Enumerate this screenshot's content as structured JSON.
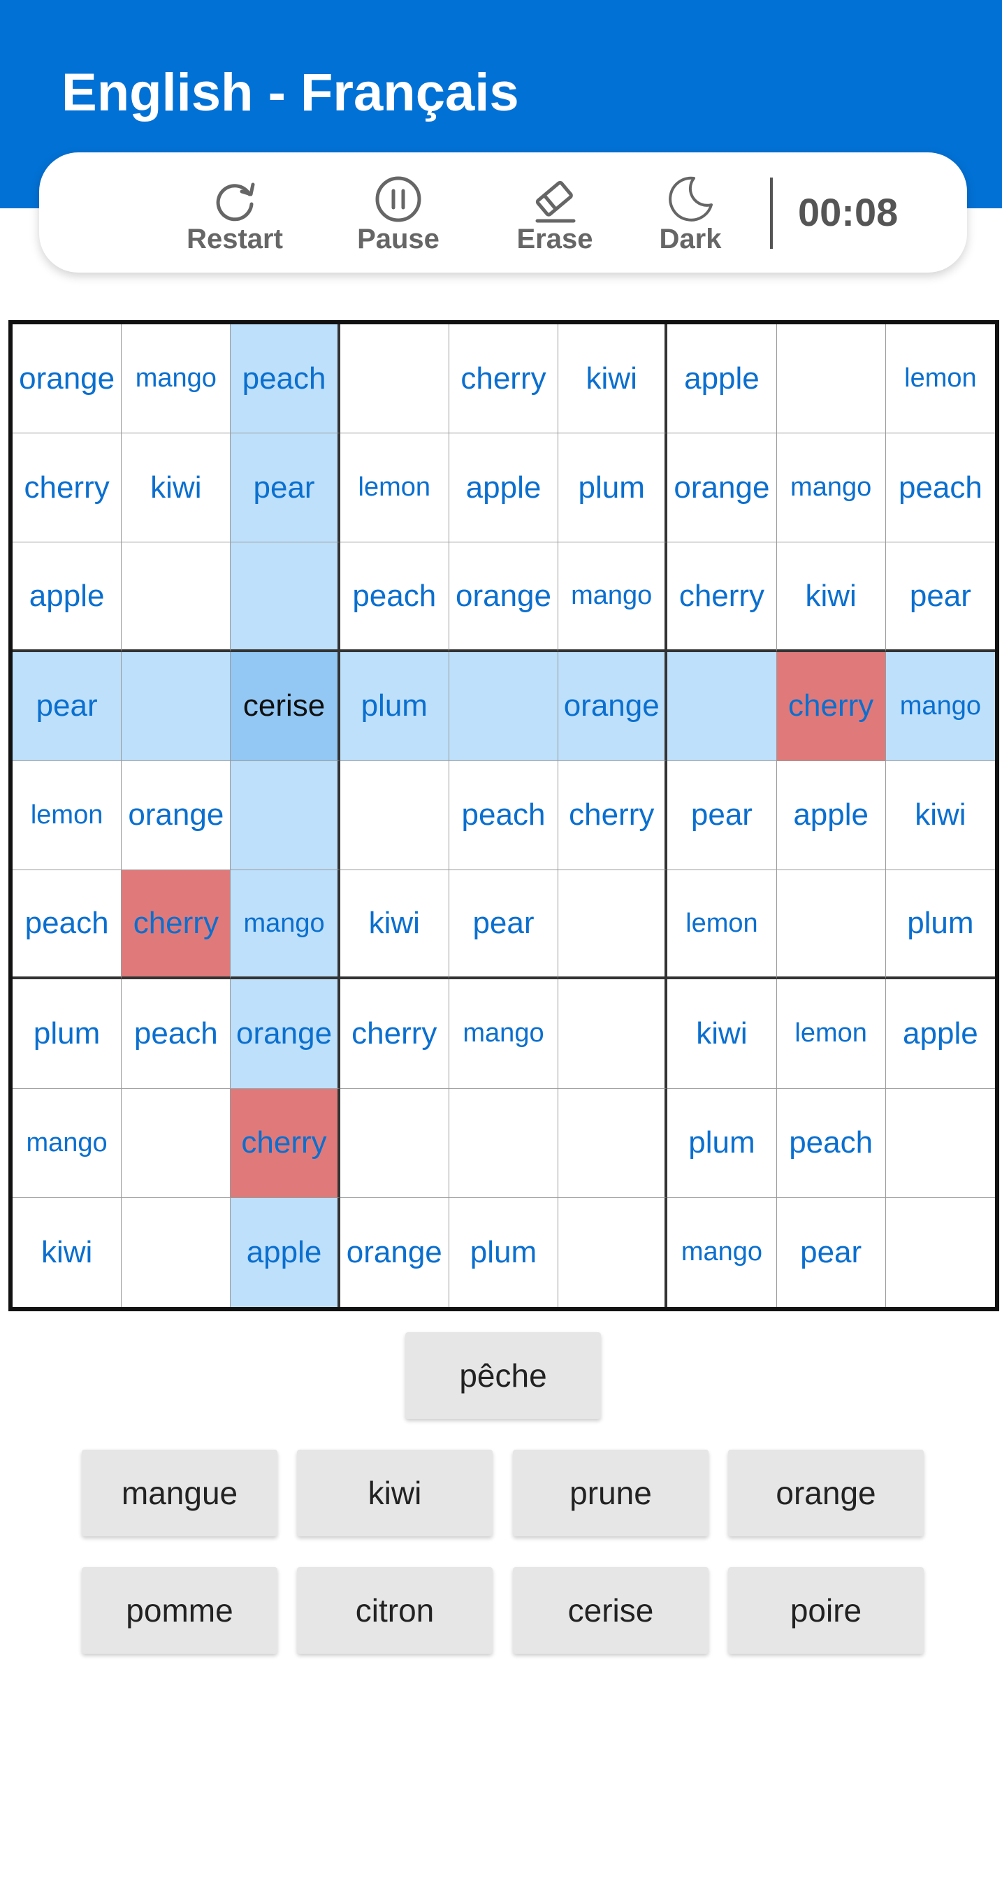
{
  "header": {
    "title": "English - Français",
    "color": "#0271d5"
  },
  "toolbar": {
    "restart": {
      "label": "Restart",
      "icon": "restart-icon"
    },
    "pause": {
      "label": "Pause",
      "icon": "pause-icon"
    },
    "erase": {
      "label": "Erase",
      "icon": "eraser-icon"
    },
    "dark": {
      "label": "Dark",
      "icon": "moon-icon"
    },
    "timer": "00:08"
  },
  "board": {
    "selected": {
      "row": 3,
      "col": 2
    },
    "conflicts": [
      [
        3,
        7
      ],
      [
        5,
        1
      ],
      [
        7,
        2
      ]
    ],
    "colors": {
      "word": "#0a6fcf",
      "highlight": "#bee0fa",
      "selected": "#93c8f5",
      "conflict": "#e07a7a"
    },
    "cells": [
      [
        "orange",
        "mango",
        "peach",
        "",
        "cherry",
        "kiwi",
        "apple",
        "",
        "lemon"
      ],
      [
        "cherry",
        "kiwi",
        "pear",
        "lemon",
        "apple",
        "plum",
        "orange",
        "mango",
        "peach"
      ],
      [
        "apple",
        "",
        "",
        "peach",
        "orange",
        "mango",
        "cherry",
        "kiwi",
        "pear"
      ],
      [
        "pear",
        "",
        "cerise",
        "plum",
        "",
        "orange",
        "",
        "cherry",
        "mango"
      ],
      [
        "lemon",
        "orange",
        "",
        "",
        "peach",
        "cherry",
        "pear",
        "apple",
        "kiwi"
      ],
      [
        "peach",
        "cherry",
        "mango",
        "kiwi",
        "pear",
        "",
        "lemon",
        "",
        "plum"
      ],
      [
        "plum",
        "peach",
        "orange",
        "cherry",
        "mango",
        "",
        "kiwi",
        "lemon",
        "apple"
      ],
      [
        "mango",
        "",
        "cherry",
        "",
        "",
        "",
        "plum",
        "peach",
        ""
      ],
      [
        "kiwi",
        "",
        "apple",
        "orange",
        "plum",
        "",
        "mango",
        "pear",
        ""
      ]
    ]
  },
  "word_bank": {
    "row1": [
      "pêche"
    ],
    "row2": [
      "mangue",
      "kiwi",
      "prune",
      "orange"
    ],
    "row3": [
      "pomme",
      "citron",
      "cerise",
      "poire"
    ]
  }
}
